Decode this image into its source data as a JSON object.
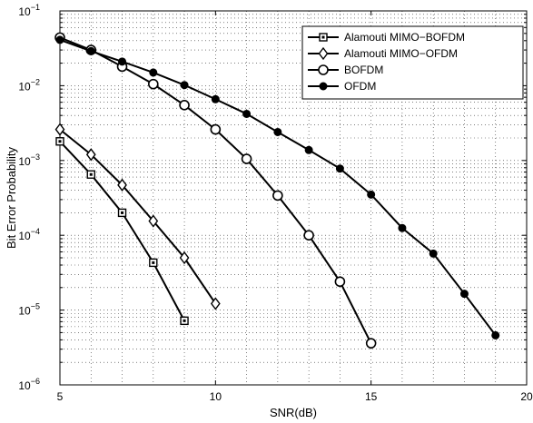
{
  "chart_data": {
    "type": "line",
    "xlabel": "SNR(dB)",
    "ylabel": "Bit Error Probability",
    "xlim": [
      5,
      20
    ],
    "ylim": [
      1e-06,
      0.1
    ],
    "yscale": "log",
    "x_ticks": [
      "5",
      "10",
      "15",
      "20"
    ],
    "y_ticks": [
      {
        "base": "10",
        "exp": "−6"
      },
      {
        "base": "10",
        "exp": "−5"
      },
      {
        "base": "10",
        "exp": "−4"
      },
      {
        "base": "10",
        "exp": "−3"
      },
      {
        "base": "10",
        "exp": "−2"
      },
      {
        "base": "10",
        "exp": "−1"
      }
    ],
    "grid": true,
    "legend_position": "top-right",
    "series": [
      {
        "name": "Alamouti MIMO−BOFDM",
        "marker": "square",
        "color": "#000000",
        "x": [
          5,
          6,
          7,
          8,
          9
        ],
        "y": [
          0.0018,
          0.00065,
          0.0002,
          4.3e-05,
          7.2e-06
        ]
      },
      {
        "name": "Alamouti MIMO−OFDM",
        "marker": "diamond",
        "color": "#000000",
        "x": [
          5,
          6,
          7,
          8,
          9,
          10
        ],
        "y": [
          0.0026,
          0.0012,
          0.00047,
          0.000155,
          5e-05,
          1.22e-05
        ]
      },
      {
        "name": "BOFDM",
        "marker": "circle-open",
        "color": "#000000",
        "x": [
          5,
          6,
          7,
          8,
          9,
          10,
          11,
          12,
          13,
          14,
          15
        ],
        "y": [
          0.044,
          0.03,
          0.018,
          0.0105,
          0.0055,
          0.0026,
          0.00105,
          0.00034,
          0.0001,
          2.4e-05,
          3.6e-06
        ]
      },
      {
        "name": "OFDM",
        "marker": "circle-filled",
        "color": "#000000",
        "x": [
          5,
          6,
          7,
          8,
          9,
          10,
          11,
          12,
          13,
          14,
          15,
          16,
          17,
          18,
          19
        ],
        "y": [
          0.041,
          0.029,
          0.021,
          0.015,
          0.0102,
          0.0066,
          0.0042,
          0.0024,
          0.00138,
          0.00078,
          0.00035,
          0.000125,
          5.7e-05,
          1.65e-05,
          4.6e-06
        ]
      }
    ]
  }
}
